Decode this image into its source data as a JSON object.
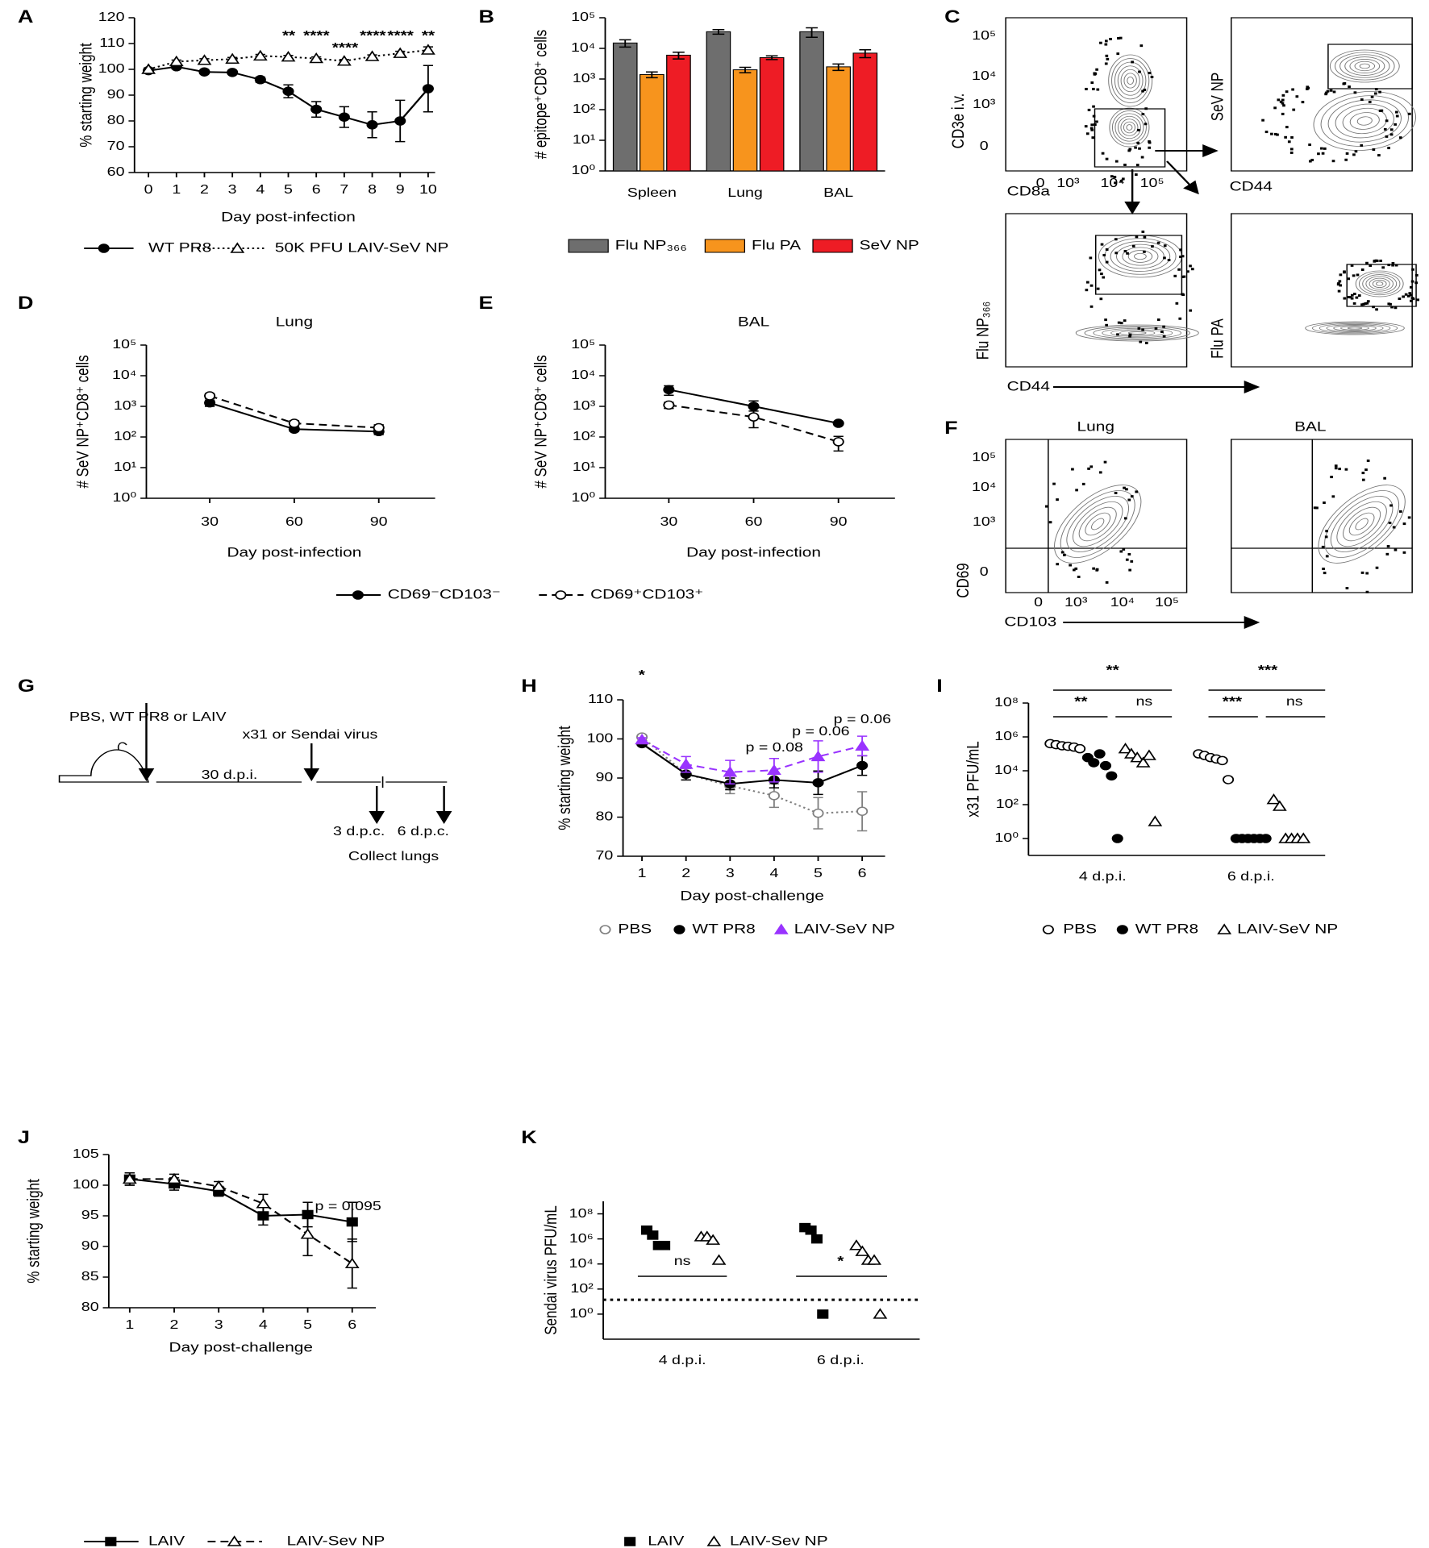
{
  "panel_labels": [
    "A",
    "B",
    "C",
    "D",
    "E",
    "F",
    "G",
    "H",
    "I",
    "J",
    "K"
  ],
  "flow_cytometry": {
    "C": {
      "y_tick_labels": [
        "10⁵",
        "10⁴",
        "10³",
        "0"
      ],
      "x_tick_labels": [
        "0",
        "10³",
        "10⁴",
        "10⁵"
      ],
      "axis_labels": [
        "CD3e i.v.",
        "CD8a",
        "SeV NP",
        "CD44",
        "Flu NP₃₆₆",
        "CD44",
        "Flu PA"
      ]
    },
    "F": {
      "titles": [
        "Lung",
        "BAL"
      ],
      "y_tick_labels": [
        "10⁵",
        "10⁴",
        "10³",
        "0"
      ],
      "x_tick_labels": [
        "0",
        "10³",
        "10⁴",
        "10⁵"
      ],
      "axis_labels": [
        "CD69",
        "CD103"
      ]
    }
  },
  "diagram_g": {
    "labels": [
      "PBS, WT PR8 or LAIV",
      "x31 or Sendai virus",
      "30 d.p.i.",
      "3 d.p.c.",
      "6 d.p.c.",
      "Collect lungs"
    ]
  },
  "chart_data": [
    {
      "type": "line",
      "x_label": "Day post-infection",
      "y_label": "% starting weight",
      "x": [
        0,
        1,
        2,
        3,
        4,
        5,
        6,
        7,
        8,
        9,
        10
      ],
      "xlim": [
        -0.5,
        10.25
      ],
      "xticks": [
        0,
        1,
        2,
        3,
        4,
        5,
        6,
        7,
        8,
        9,
        10
      ],
      "ylim": [
        60,
        120
      ],
      "yticks": [
        60,
        70,
        80,
        90,
        100,
        110,
        120
      ],
      "log_y": false,
      "series": [
        {
          "name": "WT PR8",
          "color": "#000000",
          "marker": "circle",
          "marker_filled": true,
          "line_style": "solid",
          "values": [
            99.5,
            101,
            99,
            98.8,
            96,
            91.5,
            84.5,
            81.5,
            78.5,
            80,
            92.5
          ],
          "errors": [
            0.8,
            0.8,
            0.5,
            0.5,
            1,
            2.5,
            3,
            4,
            5,
            8,
            9
          ]
        },
        {
          "name": "50K PFU LAIV-SeV NP",
          "color": "#000000",
          "marker": "triangle",
          "marker_filled": false,
          "line_style": "dotted",
          "values": [
            100,
            103,
            103.5,
            104,
            105.2,
            104.8,
            104.2,
            103.2,
            105,
            106.2,
            107.5
          ],
          "errors": [
            0.5,
            0.6,
            0.6,
            0.6,
            0.6,
            0.6,
            0.6,
            0.6,
            0.6,
            0.8,
            1.2
          ]
        }
      ],
      "annotations": [
        {
          "label": "**",
          "color": "#000000"
        },
        {
          "label": "****",
          "color": "#000000"
        },
        {
          "label": "****",
          "color": "#000000"
        },
        {
          "label": "****",
          "color": "#000000"
        },
        {
          "label": "****",
          "color": "#000000"
        },
        {
          "label": "**",
          "color": "#000000"
        }
      ]
    },
    {
      "type": "bar",
      "y_label": "# epitope⁺CD8⁺ cells",
      "categories": [
        "Spleen",
        "Lung",
        "BAL"
      ],
      "ylim": [
        1,
        100000
      ],
      "log_y": true,
      "yticks": [
        {
          "value": 1,
          "label": "10⁰"
        },
        {
          "value": 10,
          "label": "10¹"
        },
        {
          "value": 100,
          "label": "10²"
        },
        {
          "value": 1000,
          "label": "10³"
        },
        {
          "value": 10000,
          "label": "10⁴"
        },
        {
          "value": 100000,
          "label": "10⁵"
        }
      ],
      "series": [
        {
          "name": "Flu NP₃₆₆",
          "color": "#6e6e6e",
          "values": [
            15000,
            35000,
            35000
          ],
          "errors": [
            4000,
            6000,
            12000
          ]
        },
        {
          "name": "Flu PA",
          "color": "#f7941d",
          "values": [
            1400,
            2000,
            2500
          ],
          "errors": [
            300,
            400,
            600
          ]
        },
        {
          "name": "SeV NP",
          "color": "#ee1c25",
          "values": [
            6000,
            5000,
            7000
          ],
          "errors": [
            1500,
            700,
            2000
          ]
        }
      ]
    },
    {
      "type": "line",
      "title": "Lung",
      "x_label": "Day post-infection",
      "y_label": "# SeV NP⁺CD8⁺ cells",
      "x": [
        30,
        60,
        90
      ],
      "xlim": [
        7.5,
        110
      ],
      "xticks": [
        30,
        60,
        90
      ],
      "ylim": [
        1,
        100000
      ],
      "log_y": true,
      "yticks": [
        {
          "value": 1,
          "label": "10⁰"
        },
        {
          "value": 10,
          "label": "10¹"
        },
        {
          "value": 100,
          "label": "10²"
        },
        {
          "value": 1000,
          "label": "10³"
        },
        {
          "value": 10000,
          "label": "10⁴"
        },
        {
          "value": 100000,
          "label": "10⁵"
        }
      ],
      "series": [
        {
          "name": "CD69⁻CD103⁻",
          "color": "#000000",
          "marker": "circle",
          "marker_filled": true,
          "line_style": "solid",
          "values": [
            1300,
            180,
            150
          ],
          "errors": [
            300,
            30,
            30
          ]
        },
        {
          "name": "CD69⁺CD103⁺",
          "color": "#000000",
          "marker": "circle",
          "marker_filled": false,
          "line_style": "dashed",
          "values": [
            2200,
            280,
            200
          ],
          "errors": [
            400,
            60,
            50
          ]
        }
      ]
    },
    {
      "type": "line",
      "title": "BAL",
      "x_label": "Day post-infection",
      "y_label": "# SeV NP⁺CD8⁺ cells",
      "x": [
        30,
        60,
        90
      ],
      "xlim": [
        7.5,
        110
      ],
      "xticks": [
        30,
        60,
        90
      ],
      "ylim": [
        1,
        100000
      ],
      "log_y": true,
      "yticks": [
        {
          "value": 1,
          "label": "10⁰"
        },
        {
          "value": 10,
          "label": "10¹"
        },
        {
          "value": 100,
          "label": "10²"
        },
        {
          "value": 1000,
          "label": "10³"
        },
        {
          "value": 10000,
          "label": "10⁴"
        },
        {
          "value": 100000,
          "label": "10⁵"
        }
      ],
      "series": [
        {
          "color": "#000000",
          "marker": "circle",
          "marker_filled": true,
          "line_style": "solid",
          "values": [
            3500,
            1000,
            280
          ],
          "errors": [
            1200,
            500,
            40
          ]
        },
        {
          "color": "#000000",
          "marker": "circle",
          "marker_filled": false,
          "line_style": "dashed",
          "values": [
            1100,
            450,
            70
          ],
          "errors": [
            250,
            250,
            35
          ]
        }
      ]
    },
    {
      "type": "line",
      "x_label": "Day post-challenge",
      "y_label": "% starting weight",
      "x": [
        1,
        2,
        3,
        4,
        5,
        6
      ],
      "xlim": [
        0.57,
        6.52
      ],
      "xticks": [
        1,
        2,
        3,
        4,
        5,
        6
      ],
      "ylim": [
        70,
        110
      ],
      "yticks": [
        70,
        80,
        90,
        100,
        110
      ],
      "log_y": false,
      "series": [
        {
          "name": "PBS",
          "color": "#808080",
          "marker": "circle",
          "marker_filled": false,
          "line_style": "dotted",
          "values": [
            100.5,
            91,
            88,
            85.5,
            81,
            81.5
          ],
          "errors": [
            0.5,
            1.5,
            2,
            3,
            4,
            5
          ]
        },
        {
          "name": "WT PR8",
          "color": "#000000",
          "marker": "circle",
          "marker_filled": true,
          "line_style": "solid",
          "values": [
            98.8,
            91,
            88.5,
            89.5,
            88.8,
            93.2
          ],
          "errors": [
            0.5,
            1.5,
            1.5,
            2,
            3,
            2.5
          ]
        },
        {
          "name": "LAIV-SeV NP",
          "color": "#9933ff",
          "marker": "triangle",
          "marker_filled": true,
          "line_style": "dashed",
          "values": [
            99.8,
            93.5,
            91.5,
            92,
            95.5,
            98.2
          ],
          "errors": [
            0.5,
            2,
            3,
            3,
            4,
            2.5
          ]
        }
      ],
      "annotations": [
        {
          "label": "*",
          "color": "#000000"
        },
        {
          "label": "p = 0.08",
          "color": "#9933ff"
        },
        {
          "label": "p = 0.06",
          "color": "#9933ff"
        },
        {
          "label": "p = 0.06",
          "color": "#9933ff"
        }
      ]
    },
    {
      "type": "scatter",
      "y_label": "x31 PFU/mL",
      "categories": [
        "4 d.p.i.",
        "6 d.p.i."
      ],
      "ylim": [
        0.1,
        100000000
      ],
      "log_y": true,
      "yticks": [
        {
          "value": 1,
          "label": "10⁰"
        },
        {
          "value": 100,
          "label": "10²"
        },
        {
          "value": 10000,
          "label": "10⁴"
        },
        {
          "value": 1000000,
          "label": "10⁶"
        },
        {
          "value": 100000000,
          "label": "10⁸"
        }
      ],
      "series": [
        {
          "name": "PBS",
          "color": "#000000",
          "marker": "circle",
          "marker_filled": false,
          "values": [
            [
              400000,
              350000,
              300000,
              280000,
              250000,
              200000
            ],
            [
              100000,
              80000,
              60000,
              50000,
              40000,
              3000
            ]
          ]
        },
        {
          "name": "WT PR8",
          "color": "#000000",
          "marker": "circle",
          "marker_filled": true,
          "values": [
            [
              60000,
              30000,
              100000,
              20000,
              5000,
              1
            ],
            [
              1,
              1,
              1,
              1,
              1,
              1
            ]
          ]
        },
        {
          "name": "LAIV-SeV NP",
          "color": "#000000",
          "marker": "triangle",
          "marker_filled": false,
          "values": [
            [
              200000,
              100000,
              60000,
              30000,
              80000,
              10
            ],
            [
              200,
              80,
              1,
              1,
              1,
              1
            ]
          ]
        }
      ],
      "annotations": [
        {
          "label": "**",
          "color": "#000000"
        },
        {
          "label": "**",
          "color": "#000000"
        },
        {
          "label": "ns",
          "color": "#000000"
        },
        {
          "label": "***",
          "color": "#000000"
        },
        {
          "label": "***",
          "color": "#000000"
        },
        {
          "label": "ns",
          "color": "#000000"
        }
      ]
    },
    {
      "type": "line",
      "x_label": "Day post-challenge",
      "y_label": "% starting weight",
      "x": [
        1,
        2,
        3,
        4,
        5,
        6
      ],
      "xlim": [
        0.53,
        6.53
      ],
      "xticks": [
        1,
        2,
        3,
        4,
        5,
        6
      ],
      "ylim": [
        80,
        105
      ],
      "yticks": [
        80,
        85,
        90,
        95,
        100,
        105
      ],
      "log_y": false,
      "series": [
        {
          "name": "LAIV",
          "color": "#000000",
          "marker": "square",
          "marker_filled": true,
          "line_style": "solid",
          "values": [
            101,
            100.2,
            99,
            95,
            95.2,
            94
          ],
          "errors": [
            1,
            1,
            0.8,
            1.5,
            2,
            3.2
          ]
        },
        {
          "name": "LAIV-Sev NP",
          "color": "#000000",
          "marker": "triangle",
          "marker_filled": false,
          "line_style": "dashed",
          "values": [
            101,
            101,
            99.8,
            97,
            92,
            87.2
          ],
          "errors": [
            1,
            0.8,
            0.8,
            1.5,
            3.5,
            4
          ]
        }
      ],
      "annotations": [
        {
          "label": "p = 0.095",
          "color": "#000000"
        }
      ]
    },
    {
      "type": "scatter",
      "y_label": "Sendai virus PFU/mL",
      "categories": [
        "4 d.p.i.",
        "6 d.p.i."
      ],
      "ylim": [
        0.01,
        1000000000
      ],
      "log_y": true,
      "yticks": [
        {
          "value": 1,
          "label": "10⁰"
        },
        {
          "value": 100,
          "label": "10²"
        },
        {
          "value": 10000,
          "label": "10⁴"
        },
        {
          "value": 1000000,
          "label": "10⁶"
        },
        {
          "value": 100000000,
          "label": "10⁸"
        }
      ],
      "detection_limit": 14,
      "series": [
        {
          "name": "LAIV",
          "color": "#000000",
          "marker": "square",
          "marker_filled": true,
          "values": [
            [
              5000000,
              2000000,
              300000,
              300000
            ],
            [
              8000000,
              5000000,
              1000000,
              1
            ]
          ]
        },
        {
          "name": "LAIV-Sev NP",
          "color": "#000000",
          "marker": "triangle",
          "marker_filled": false,
          "values": [
            [
              1500000,
              1500000,
              800000,
              20000
            ],
            [
              300000,
              100000,
              20000,
              20000,
              1
            ]
          ]
        }
      ],
      "annotations": [
        {
          "label": "ns",
          "color": "#000000"
        },
        {
          "label": "*",
          "color": "#000000"
        }
      ]
    }
  ]
}
